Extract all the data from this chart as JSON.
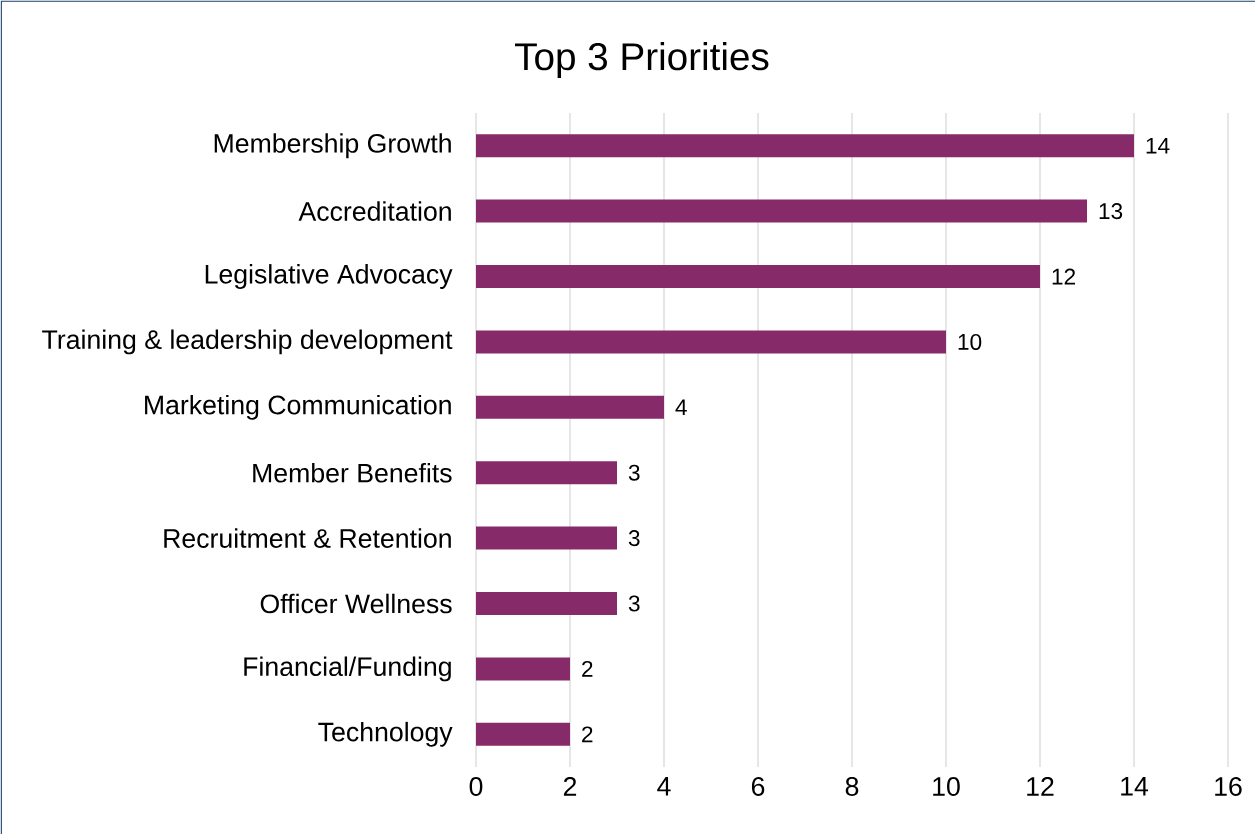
{
  "chart_data": {
    "type": "bar",
    "orientation": "horizontal",
    "title": "Top 3 Priorities",
    "categories": [
      "Membership Growth",
      "Accreditation",
      "Legislative Advocacy",
      "Training & leadership development",
      "Marketing Communication",
      "Member Benefits",
      "Recruitment & Retention",
      "Officer Wellness",
      "Financial/Funding",
      "Technology"
    ],
    "values": [
      14,
      13,
      12,
      10,
      4,
      3,
      3,
      3,
      2,
      2
    ],
    "color": "#862a6a",
    "xlim": [
      0,
      16
    ],
    "xticks": [
      0,
      2,
      4,
      6,
      8,
      10,
      12,
      14,
      16
    ],
    "grid": "x",
    "data_labels": true
  }
}
